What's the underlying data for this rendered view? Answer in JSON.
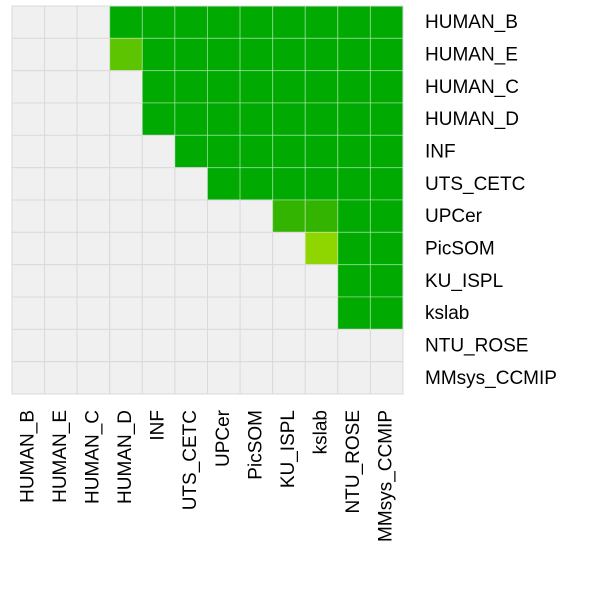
{
  "chart_data": {
    "type": "heatmap",
    "rows": [
      "HUMAN_B",
      "HUMAN_E",
      "HUMAN_C",
      "HUMAN_D",
      "INF",
      "UTS_CETC",
      "UPCer",
      "PicSOM",
      "KU_ISPL",
      "kslab",
      "NTU_ROSE",
      "MMsys_CCMIP"
    ],
    "columns": [
      "HUMAN_B",
      "HUMAN_E",
      "HUMAN_C",
      "HUMAN_D",
      "INF",
      "UTS_CETC",
      "UPCer",
      "PicSOM",
      "KU_ISPL",
      "kslab",
      "NTU_ROSE",
      "MMsys_CCMIP"
    ],
    "values": [
      [
        0,
        0,
        0,
        1,
        1,
        1,
        1,
        1,
        1,
        1,
        1,
        1
      ],
      [
        0,
        0,
        0,
        3,
        1,
        1,
        1,
        1,
        1,
        1,
        1,
        1
      ],
      [
        0,
        0,
        0,
        0,
        1,
        1,
        1,
        1,
        1,
        1,
        1,
        1
      ],
      [
        0,
        0,
        0,
        0,
        1,
        1,
        1,
        1,
        1,
        1,
        1,
        1
      ],
      [
        0,
        0,
        0,
        0,
        0,
        1,
        1,
        1,
        1,
        1,
        1,
        1
      ],
      [
        0,
        0,
        0,
        0,
        0,
        0,
        1,
        1,
        1,
        1,
        1,
        1
      ],
      [
        0,
        0,
        0,
        0,
        0,
        0,
        0,
        0,
        2,
        2,
        1,
        1
      ],
      [
        0,
        0,
        0,
        0,
        0,
        0,
        0,
        0,
        0,
        4,
        1,
        1
      ],
      [
        0,
        0,
        0,
        0,
        0,
        0,
        0,
        0,
        0,
        0,
        1,
        1
      ],
      [
        0,
        0,
        0,
        0,
        0,
        0,
        0,
        0,
        0,
        0,
        1,
        1
      ],
      [
        0,
        0,
        0,
        0,
        0,
        0,
        0,
        0,
        0,
        0,
        0,
        0
      ],
      [
        0,
        0,
        0,
        0,
        0,
        0,
        0,
        0,
        0,
        0,
        0,
        0
      ]
    ],
    "colorscale": [
      "#f0f0f0",
      "#00aa00",
      "#33b400",
      "#5cc400",
      "#8fd600"
    ]
  }
}
